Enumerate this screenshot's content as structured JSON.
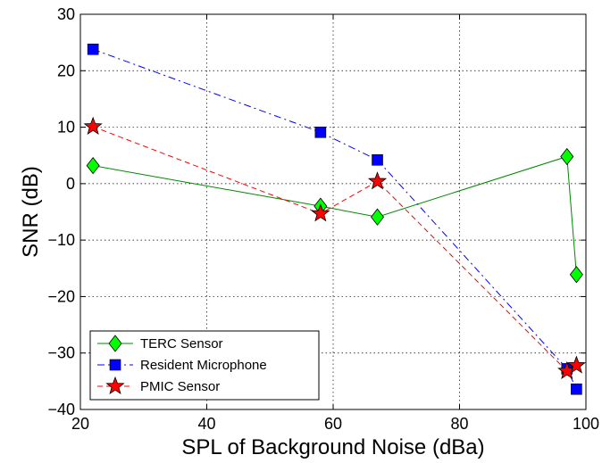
{
  "chart_data": {
    "type": "line",
    "title": "",
    "xlabel": "SPL of Background Noise (dBa)",
    "ylabel": "SNR (dB)",
    "xlim": [
      20,
      100
    ],
    "ylim": [
      -40,
      30
    ],
    "xticks": [
      20,
      40,
      60,
      80,
      100
    ],
    "yticks": [
      -40,
      -30,
      -20,
      -10,
      0,
      10,
      20,
      30
    ],
    "grid": true,
    "legend_position": "bottom-left",
    "series": [
      {
        "name": "TERC Sensor",
        "color": "#008800",
        "marker": "diamond",
        "marker_color": "#00ff00",
        "line_style": "solid",
        "x": [
          22,
          58,
          67,
          97,
          98.5
        ],
        "y": [
          3.2,
          -4.0,
          -5.9,
          4.8,
          -16.1
        ]
      },
      {
        "name": "Resident Microphone",
        "color": "#0000ff",
        "marker": "square",
        "marker_color": "#0000ff",
        "line_style": "dash-dot",
        "x": [
          22,
          58,
          67,
          97,
          98.5
        ],
        "y": [
          23.8,
          9.1,
          4.2,
          -32.8,
          -36.4
        ]
      },
      {
        "name": "PMIC Sensor",
        "color": "#ff0000",
        "marker": "star",
        "marker_color": "#ff0000",
        "line_style": "dashed",
        "x": [
          22,
          58,
          67,
          97,
          98.5
        ],
        "y": [
          10.1,
          -5.3,
          0.4,
          -33.2,
          -32.2
        ]
      }
    ]
  }
}
